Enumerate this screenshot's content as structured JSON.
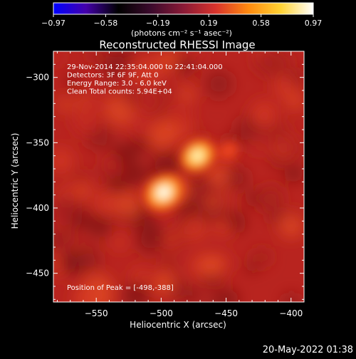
{
  "chart_data": {
    "type": "heatmap",
    "title": "Reconstructed RHESSI Image",
    "xlabel": "Heliocentric X (arcsec)",
    "ylabel": "Heliocentric Y (arcsec)",
    "xlim": [
      -583,
      -390
    ],
    "ylim": [
      -472,
      -280
    ],
    "x_ticks": [
      -550,
      -500,
      -450,
      -400
    ],
    "x_tick_labels": [
      "−550",
      "−500",
      "−450",
      "−400"
    ],
    "y_ticks": [
      -300,
      -350,
      -400,
      -450
    ],
    "y_tick_labels": [
      "−300",
      "−350",
      "−400",
      "−450"
    ],
    "colorbar": {
      "min": -0.97,
      "max": 0.97,
      "ticks": [
        -0.97,
        -0.58,
        -0.19,
        0.19,
        0.58,
        0.97
      ],
      "tick_labels": [
        "−0.97",
        "−0.58",
        "−0.19",
        "0.19",
        "0.58",
        "0.97"
      ],
      "units_label": "(photons cm⁻² s⁻¹ asec⁻²)",
      "colormap": [
        "#0000ff",
        "#4400aa",
        "#000000",
        "#3b0a2c",
        "#8a1a36",
        "#d8332c",
        "#ff8a0f",
        "#ffd233",
        "#ffffff"
      ]
    },
    "annotations": [
      "29-Nov-2014 22:35:04.000 to 22:41:04.000",
      "Detectors: 3F 6F 9F, Att 0",
      "Energy Range: 3.0 - 6.0 keV",
      "Clean    Total counts: 5.94E+04"
    ],
    "peak_label": "Position of Peak = [-498,-388]",
    "peak_position": [
      -498,
      -388
    ],
    "sources": [
      {
        "x": -498,
        "y": -388,
        "intensity": 0.97
      },
      {
        "x": -472,
        "y": -360,
        "intensity": 0.82
      },
      {
        "x": -448,
        "y": -356,
        "intensity": 0.35
      }
    ],
    "background_level": 0.3
  },
  "footer_date": "20-May-2022 01:38"
}
